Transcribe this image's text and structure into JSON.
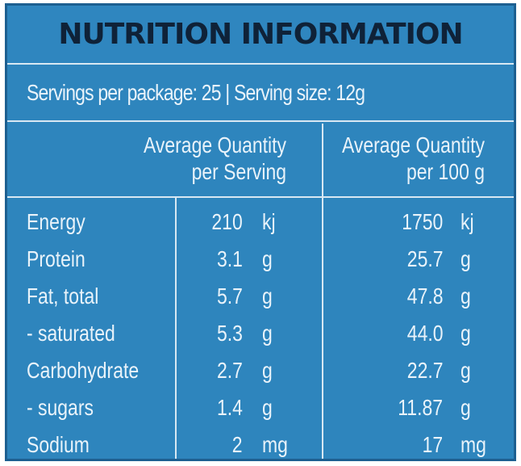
{
  "title": "NUTRITION INFORMATION",
  "servings_line": "Servings per package: 25 | Serving size: 12g",
  "headers": {
    "per_serving_line1": "Average Quantity",
    "per_serving_line2": "per Serving",
    "per_100g_line1": "Average Quantity",
    "per_100g_line2": "per 100 g"
  },
  "rows": [
    {
      "name": "Energy",
      "serving_value": "210",
      "serving_unit": "kj",
      "per100_value": "1750",
      "per100_unit": "kj"
    },
    {
      "name": "Protein",
      "serving_value": "3.1",
      "serving_unit": "g",
      "per100_value": "25.7",
      "per100_unit": "g"
    },
    {
      "name": "Fat, total",
      "serving_value": "5.7",
      "serving_unit": "g",
      "per100_value": "47.8",
      "per100_unit": "g"
    },
    {
      "name": "- saturated",
      "serving_value": "5.3",
      "serving_unit": "g",
      "per100_value": "44.0",
      "per100_unit": "g"
    },
    {
      "name": "Carbohydrate",
      "serving_value": "2.7",
      "serving_unit": "g",
      "per100_value": "22.7",
      "per100_unit": "g"
    },
    {
      "name": "- sugars",
      "serving_value": "1.4",
      "serving_unit": "g",
      "per100_value": "11.87",
      "per100_unit": "g"
    },
    {
      "name": "Sodium",
      "serving_value": "2",
      "serving_unit": "mg",
      "per100_value": "17",
      "per100_unit": "mg"
    }
  ],
  "colors": {
    "panel_background": "#2e85bd",
    "border": "#1d5f90",
    "rule_lines": "#d8e8f3",
    "title_text": "#0f2238",
    "body_text": "#e9f3fa"
  }
}
